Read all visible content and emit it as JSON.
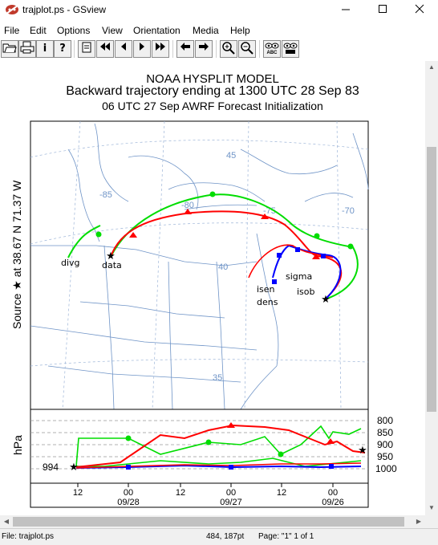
{
  "window": {
    "title": "trajplot.ps - GSview"
  },
  "menu": [
    "File",
    "Edit",
    "Options",
    "View",
    "Orientation",
    "Media",
    "Help"
  ],
  "toolbar": {
    "buttons": [
      "open-icon",
      "print-icon",
      "info-icon",
      "help-icon",
      "goto-page-icon",
      "first-page-icon",
      "previous-page-icon",
      "next-page-icon",
      "last-page-icon",
      "back-icon",
      "forward-icon",
      "zoom-in-icon",
      "zoom-out-icon",
      "preview-abc-icon",
      "magnify-abc-icon"
    ]
  },
  "plot": {
    "title1": "NOAA HYSPLIT MODEL",
    "title2": "Backward trajectory ending at 1300 UTC 28 Sep 83",
    "title3": "06 UTC 27 Sep    AWRF  Forecast Initialization",
    "source_label": "Source ★  at   38.67 N   71.37 W",
    "lat_labels": [
      "45",
      "40",
      "35"
    ],
    "lon_labels": [
      "-85",
      "-80",
      "-75",
      "-70"
    ],
    "trajectory_labels": [
      "divg",
      "data",
      "isen",
      "dens",
      "sigma",
      "isob"
    ],
    "hpa_label": "hPa",
    "pressure_levels": [
      "800",
      "850",
      "900",
      "950",
      "1000"
    ],
    "start_pressure": "994",
    "time_hours": [
      "12",
      "00",
      "12",
      "00",
      "12",
      "00"
    ],
    "time_dates": [
      "09/28",
      "09/27",
      "09/26"
    ],
    "colors": {
      "data": "#ff0000",
      "divg": "#00cc00",
      "isen": "#0000ff",
      "map": "#6f94c7"
    }
  },
  "status": {
    "file": "File: trajplot.ps",
    "coords": "484, 187pt",
    "page": "Page: \"1\"  1 of 1"
  }
}
